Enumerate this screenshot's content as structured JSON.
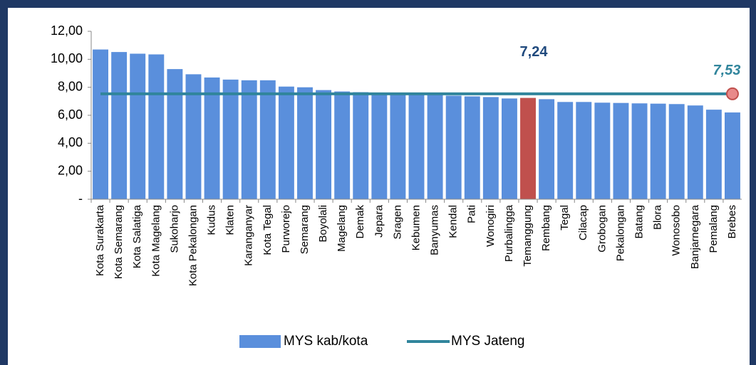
{
  "chart_data": {
    "type": "bar",
    "categories": [
      "Kota Surakarta",
      "Kota Semarang",
      "Kota Salatiga",
      "Kota Magelang",
      "Sukoharjo",
      "Kota Pekalongan",
      "Kudus",
      "Klaten",
      "Karanganyar",
      "Kota Tegal",
      "Purworejo",
      "Semarang",
      "Boyolali",
      "Magelang",
      "Demak",
      "Jepara",
      "Sragen",
      "Kebumen",
      "Banyumas",
      "Kendal",
      "Pati",
      "Wonogiri",
      "Purbalingga",
      "Temanggung",
      "Rembang",
      "Tegal",
      "Cilacap",
      "Grobogan",
      "Pekalongan",
      "Batang",
      "Blora",
      "Wonosobo",
      "Banjarnegara",
      "Pemalang",
      "Brebes"
    ],
    "series": [
      {
        "name": "MYS kab/kota",
        "type": "bar",
        "color": "#5a8fdc",
        "highlight_category": "Temanggung",
        "highlight_color": "#c0504d",
        "values": [
          10.7,
          10.52,
          10.4,
          10.35,
          9.3,
          8.93,
          8.7,
          8.55,
          8.5,
          8.5,
          8.05,
          8.0,
          7.8,
          7.7,
          7.65,
          7.55,
          7.5,
          7.5,
          7.45,
          7.4,
          7.35,
          7.3,
          7.2,
          7.24,
          7.15,
          6.95,
          6.95,
          6.9,
          6.88,
          6.85,
          6.83,
          6.8,
          6.7,
          6.4,
          6.2
        ],
        "value_labels": [
          null,
          null,
          null,
          null,
          null,
          null,
          null,
          null,
          null,
          null,
          null,
          null,
          null,
          null,
          null,
          null,
          null,
          null,
          null,
          null,
          null,
          null,
          null,
          "7,24",
          null,
          null,
          null,
          null,
          null,
          null,
          null,
          null,
          null,
          null,
          null
        ]
      },
      {
        "name": "MYS Jateng",
        "type": "line",
        "color": "#31859c",
        "values": [
          7.53,
          7.53,
          7.53,
          7.53,
          7.53,
          7.53,
          7.53,
          7.53,
          7.53,
          7.53,
          7.53,
          7.53,
          7.53,
          7.53,
          7.53,
          7.53,
          7.53,
          7.53,
          7.53,
          7.53,
          7.53,
          7.53,
          7.53,
          7.53,
          7.53,
          7.53,
          7.53,
          7.53,
          7.53,
          7.53,
          7.53,
          7.53,
          7.53,
          7.53,
          7.53
        ],
        "value_labels": [
          null,
          null,
          null,
          null,
          null,
          null,
          null,
          null,
          null,
          null,
          null,
          null,
          null,
          null,
          null,
          null,
          null,
          null,
          null,
          null,
          null,
          null,
          null,
          null,
          null,
          null,
          null,
          null,
          null,
          null,
          null,
          null,
          null,
          null,
          "7,53"
        ]
      }
    ],
    "ylim": [
      0,
      12
    ],
    "yticks": [
      {
        "value": 0,
        "label": "-"
      },
      {
        "value": 2,
        "label": "2,00"
      },
      {
        "value": 4,
        "label": "4,00"
      },
      {
        "value": 6,
        "label": "6,00"
      },
      {
        "value": 8,
        "label": "8,00"
      },
      {
        "value": 10,
        "label": "10,00"
      },
      {
        "value": 12,
        "label": "12,00"
      }
    ],
    "grid": false,
    "legend": "bottom"
  }
}
